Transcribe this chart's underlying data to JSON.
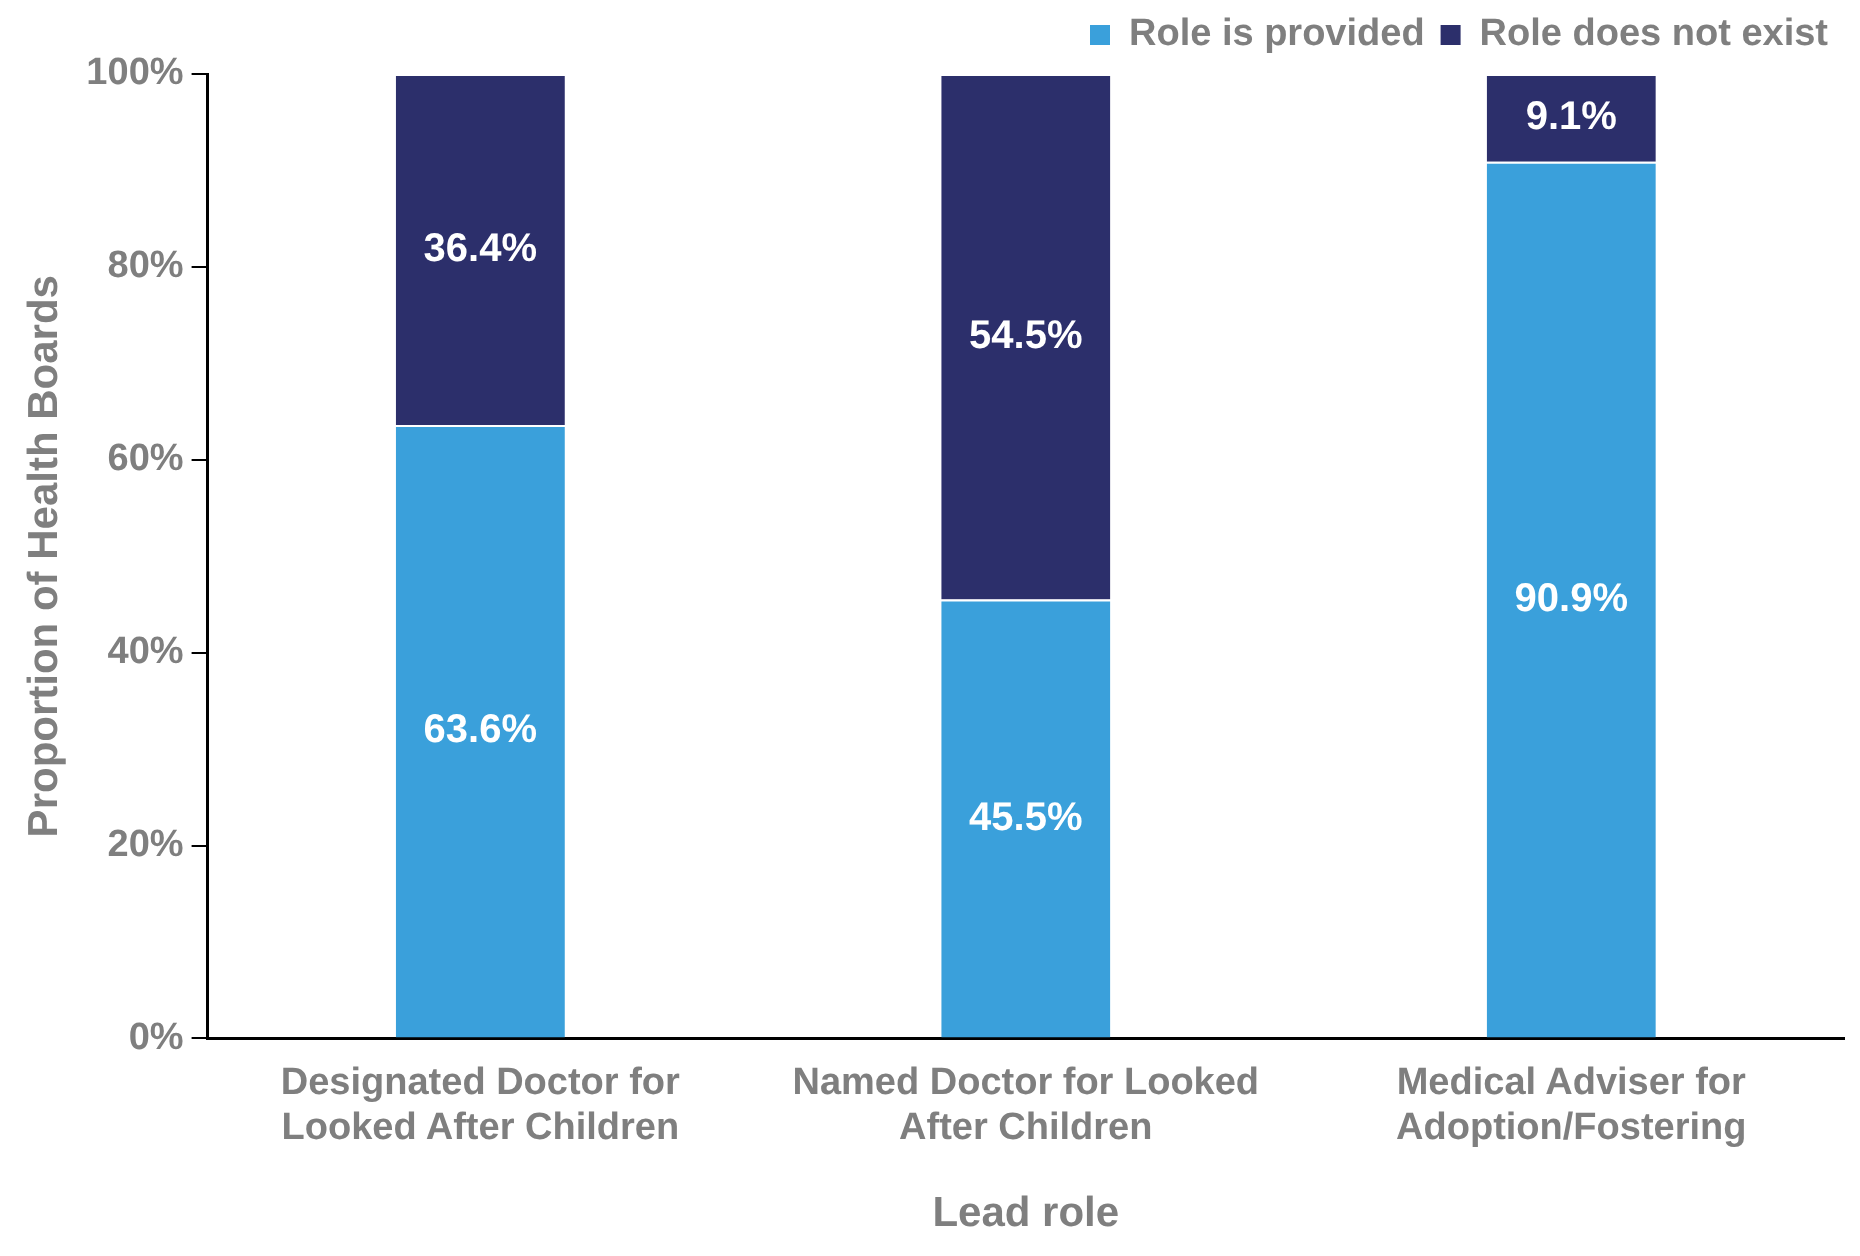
{
  "chart_data": {
    "type": "bar",
    "stacked": true,
    "xlabel": "Lead role",
    "ylabel": "Proportion of Health Boards",
    "categories": [
      "Designated Doctor for Looked After Children",
      "Named Doctor for Looked After Children",
      "Medical Adviser for Adoption/Fostering"
    ],
    "series": [
      {
        "name": "Role is provided",
        "color": "#3aa0db",
        "values": [
          63.6,
          45.5,
          90.9
        ],
        "value_labels": [
          "63.6%",
          "45.5%",
          "90.9%"
        ]
      },
      {
        "name": "Role does not exist",
        "color": "#2c2f6b",
        "values": [
          36.4,
          54.5,
          9.1
        ],
        "value_labels": [
          "36.4%",
          "54.5%",
          "9.1%"
        ]
      }
    ],
    "ylim": [
      0,
      100
    ],
    "yticks": [
      {
        "value": 0,
        "label": "0%"
      },
      {
        "value": 20,
        "label": "20%"
      },
      {
        "value": 40,
        "label": "40%"
      },
      {
        "value": 60,
        "label": "60%"
      },
      {
        "value": 80,
        "label": "80%"
      },
      {
        "value": 100,
        "label": "100%"
      }
    ],
    "grid": false,
    "legend": "top right"
  }
}
